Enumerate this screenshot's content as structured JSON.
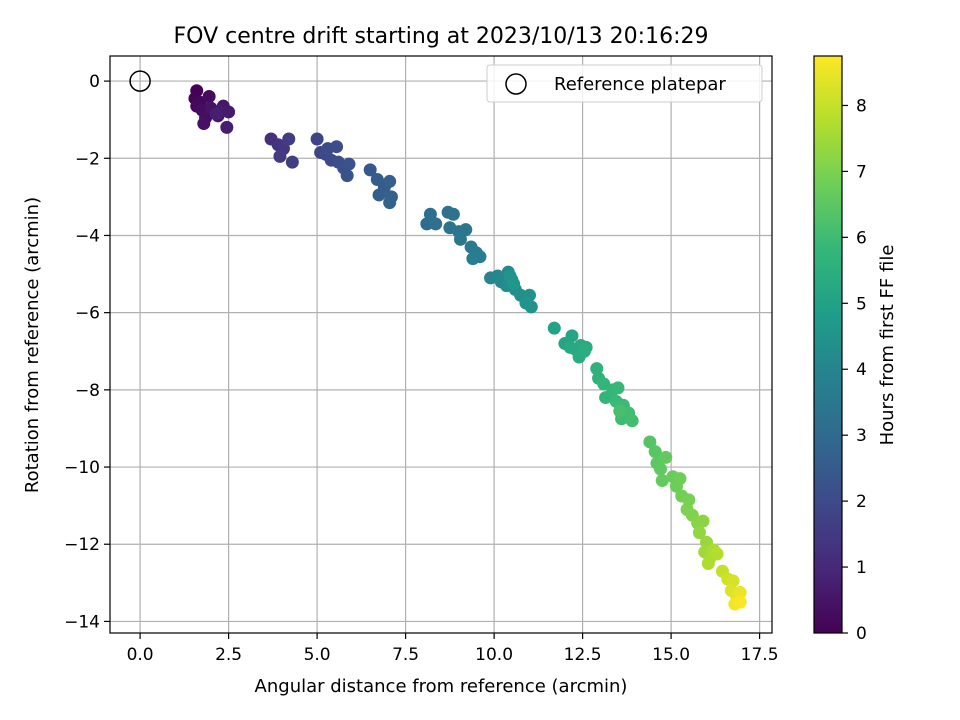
{
  "chart_data": {
    "type": "scatter",
    "title": "FOV centre drift starting at 2023/10/13 20:16:29",
    "xlabel": "Angular distance from reference (arcmin)",
    "ylabel": "Rotation from reference (arcmin)",
    "xlim": [
      -0.85,
      17.85
    ],
    "ylim": [
      -14.3,
      0.65
    ],
    "xticks": [
      0.0,
      2.5,
      5.0,
      7.5,
      10.0,
      12.5,
      15.0,
      17.5
    ],
    "xtick_labels": [
      "0.0",
      "2.5",
      "5.0",
      "7.5",
      "10.0",
      "12.5",
      "15.0",
      "17.5"
    ],
    "yticks": [
      0,
      -2,
      -4,
      -6,
      -8,
      -10,
      -12,
      -14
    ],
    "ytick_labels": [
      "0",
      "−2",
      "−4",
      "−6",
      "−8",
      "−10",
      "−12",
      "−14"
    ],
    "grid": true,
    "legend": {
      "position": "top-right",
      "entries": [
        {
          "label": "Reference platepar",
          "marker": "open-circle"
        }
      ]
    },
    "reference_point": {
      "x": 0.0,
      "y": 0.0
    },
    "colorbar": {
      "label": "Hours from first FF file",
      "range": [
        0,
        8.75
      ],
      "ticks": [
        0,
        1,
        2,
        3,
        4,
        5,
        6,
        7,
        8
      ],
      "tick_labels": [
        "0",
        "1",
        "2",
        "3",
        "4",
        "5",
        "6",
        "7",
        "8"
      ],
      "colormap": "viridis",
      "stops": [
        "#440154",
        "#482878",
        "#3e4989",
        "#31688e",
        "#26828e",
        "#1f9e89",
        "#35b779",
        "#6ece58",
        "#b5de2b",
        "#fde725"
      ]
    },
    "series": [
      {
        "name": "FOV centre drift",
        "points": [
          {
            "x": 1.6,
            "y": -0.25,
            "hours": 0.05
          },
          {
            "x": 1.55,
            "y": -0.45,
            "hours": 0.1
          },
          {
            "x": 1.7,
            "y": -0.55,
            "hours": 0.15
          },
          {
            "x": 1.6,
            "y": -0.65,
            "hours": 0.2
          },
          {
            "x": 1.95,
            "y": -0.4,
            "hours": 0.25
          },
          {
            "x": 1.75,
            "y": -0.75,
            "hours": 0.3
          },
          {
            "x": 1.85,
            "y": -0.95,
            "hours": 0.35
          },
          {
            "x": 1.8,
            "y": -1.1,
            "hours": 0.4
          },
          {
            "x": 2.0,
            "y": -0.7,
            "hours": 0.45
          },
          {
            "x": 2.2,
            "y": -0.9,
            "hours": 0.5
          },
          {
            "x": 2.35,
            "y": -0.65,
            "hours": 0.55
          },
          {
            "x": 2.3,
            "y": -0.75,
            "hours": 0.6
          },
          {
            "x": 2.5,
            "y": -0.8,
            "hours": 0.65
          },
          {
            "x": 2.45,
            "y": -1.2,
            "hours": 0.7
          },
          {
            "x": 2.15,
            "y": -0.85,
            "hours": 0.75
          },
          {
            "x": 3.7,
            "y": -1.5,
            "hours": 1.2
          },
          {
            "x": 3.9,
            "y": -1.65,
            "hours": 1.3
          },
          {
            "x": 4.05,
            "y": -1.75,
            "hours": 1.4
          },
          {
            "x": 3.95,
            "y": -1.95,
            "hours": 1.5
          },
          {
            "x": 4.2,
            "y": -1.5,
            "hours": 1.55
          },
          {
            "x": 4.3,
            "y": -2.1,
            "hours": 1.65
          },
          {
            "x": 5.0,
            "y": -1.5,
            "hours": 1.8
          },
          {
            "x": 5.1,
            "y": -1.85,
            "hours": 1.85
          },
          {
            "x": 5.25,
            "y": -1.9,
            "hours": 1.9
          },
          {
            "x": 5.4,
            "y": -2.05,
            "hours": 1.95
          },
          {
            "x": 5.3,
            "y": -1.75,
            "hours": 2.0
          },
          {
            "x": 5.55,
            "y": -1.7,
            "hours": 2.05
          },
          {
            "x": 5.6,
            "y": -2.1,
            "hours": 2.1
          },
          {
            "x": 5.75,
            "y": -2.25,
            "hours": 2.15
          },
          {
            "x": 5.85,
            "y": -2.45,
            "hours": 2.2
          },
          {
            "x": 5.9,
            "y": -2.15,
            "hours": 2.25
          },
          {
            "x": 6.5,
            "y": -2.3,
            "hours": 2.4
          },
          {
            "x": 6.7,
            "y": -2.55,
            "hours": 2.5
          },
          {
            "x": 6.9,
            "y": -2.75,
            "hours": 2.55
          },
          {
            "x": 6.75,
            "y": -2.95,
            "hours": 2.6
          },
          {
            "x": 7.05,
            "y": -2.6,
            "hours": 2.65
          },
          {
            "x": 7.1,
            "y": -3.0,
            "hours": 2.7
          },
          {
            "x": 7.05,
            "y": -3.15,
            "hours": 2.75
          },
          {
            "x": 8.1,
            "y": -3.7,
            "hours": 3.1
          },
          {
            "x": 8.2,
            "y": -3.45,
            "hours": 3.15
          },
          {
            "x": 8.35,
            "y": -3.7,
            "hours": 3.2
          },
          {
            "x": 8.7,
            "y": -3.4,
            "hours": 3.25
          },
          {
            "x": 8.85,
            "y": -3.45,
            "hours": 3.3
          },
          {
            "x": 8.75,
            "y": -3.8,
            "hours": 3.35
          },
          {
            "x": 9.0,
            "y": -3.9,
            "hours": 3.4
          },
          {
            "x": 9.2,
            "y": -3.85,
            "hours": 3.45
          },
          {
            "x": 9.05,
            "y": -4.1,
            "hours": 3.5
          },
          {
            "x": 9.35,
            "y": -4.3,
            "hours": 3.6
          },
          {
            "x": 9.5,
            "y": -4.45,
            "hours": 3.65
          },
          {
            "x": 9.6,
            "y": -4.55,
            "hours": 3.7
          },
          {
            "x": 9.4,
            "y": -4.6,
            "hours": 3.75
          },
          {
            "x": 9.9,
            "y": -5.1,
            "hours": 4.0
          },
          {
            "x": 10.1,
            "y": -5.05,
            "hours": 4.05
          },
          {
            "x": 10.2,
            "y": -5.2,
            "hours": 4.1
          },
          {
            "x": 10.4,
            "y": -4.95,
            "hours": 4.15
          },
          {
            "x": 10.5,
            "y": -5.15,
            "hours": 4.2
          },
          {
            "x": 10.35,
            "y": -5.3,
            "hours": 4.25
          },
          {
            "x": 10.6,
            "y": -5.4,
            "hours": 4.3
          },
          {
            "x": 10.75,
            "y": -5.55,
            "hours": 4.35
          },
          {
            "x": 11.0,
            "y": -5.55,
            "hours": 4.4
          },
          {
            "x": 11.05,
            "y": -5.85,
            "hours": 4.45
          },
          {
            "x": 10.9,
            "y": -5.75,
            "hours": 4.5
          },
          {
            "x": 10.45,
            "y": -5.05,
            "hours": 4.55
          },
          {
            "x": 10.55,
            "y": -5.25,
            "hours": 4.6
          },
          {
            "x": 11.7,
            "y": -6.4,
            "hours": 5.0
          },
          {
            "x": 12.0,
            "y": -6.8,
            "hours": 5.1
          },
          {
            "x": 12.2,
            "y": -6.6,
            "hours": 5.15
          },
          {
            "x": 12.3,
            "y": -6.95,
            "hours": 5.2
          },
          {
            "x": 12.15,
            "y": -6.9,
            "hours": 5.25
          },
          {
            "x": 12.45,
            "y": -6.85,
            "hours": 5.3
          },
          {
            "x": 12.6,
            "y": -6.9,
            "hours": 5.35
          },
          {
            "x": 12.4,
            "y": -7.15,
            "hours": 5.4
          },
          {
            "x": 12.55,
            "y": -7.0,
            "hours": 5.45
          },
          {
            "x": 12.9,
            "y": -7.45,
            "hours": 5.6
          },
          {
            "x": 12.95,
            "y": -7.7,
            "hours": 5.65
          },
          {
            "x": 13.1,
            "y": -7.85,
            "hours": 5.7
          },
          {
            "x": 13.15,
            "y": -8.2,
            "hours": 5.75
          },
          {
            "x": 13.35,
            "y": -8.0,
            "hours": 5.8
          },
          {
            "x": 13.5,
            "y": -7.95,
            "hours": 5.85
          },
          {
            "x": 13.45,
            "y": -8.3,
            "hours": 5.9
          },
          {
            "x": 13.65,
            "y": -8.4,
            "hours": 5.95
          },
          {
            "x": 13.6,
            "y": -8.75,
            "hours": 6.0
          },
          {
            "x": 13.8,
            "y": -8.6,
            "hours": 6.05
          },
          {
            "x": 13.9,
            "y": -8.8,
            "hours": 6.1
          },
          {
            "x": 13.55,
            "y": -8.55,
            "hours": 6.15
          },
          {
            "x": 14.4,
            "y": -9.35,
            "hours": 6.4
          },
          {
            "x": 14.55,
            "y": -9.6,
            "hours": 6.45
          },
          {
            "x": 14.6,
            "y": -9.9,
            "hours": 6.5
          },
          {
            "x": 14.7,
            "y": -10.05,
            "hours": 6.55
          },
          {
            "x": 14.85,
            "y": -9.75,
            "hours": 6.6
          },
          {
            "x": 14.75,
            "y": -10.35,
            "hours": 6.65
          },
          {
            "x": 15.05,
            "y": -10.25,
            "hours": 6.7
          },
          {
            "x": 15.15,
            "y": -10.5,
            "hours": 6.75
          },
          {
            "x": 15.25,
            "y": -10.3,
            "hours": 6.8
          },
          {
            "x": 15.3,
            "y": -10.75,
            "hours": 6.85
          },
          {
            "x": 15.5,
            "y": -10.85,
            "hours": 6.9
          },
          {
            "x": 15.45,
            "y": -11.1,
            "hours": 7.0
          },
          {
            "x": 15.6,
            "y": -11.25,
            "hours": 7.05
          },
          {
            "x": 15.75,
            "y": -11.45,
            "hours": 7.15
          },
          {
            "x": 15.9,
            "y": -11.4,
            "hours": 7.2
          },
          {
            "x": 15.8,
            "y": -11.7,
            "hours": 7.3
          },
          {
            "x": 16.0,
            "y": -11.95,
            "hours": 7.4
          },
          {
            "x": 15.95,
            "y": -12.2,
            "hours": 7.5
          },
          {
            "x": 16.1,
            "y": -12.35,
            "hours": 7.6
          },
          {
            "x": 16.2,
            "y": -12.15,
            "hours": 7.65
          },
          {
            "x": 16.05,
            "y": -12.5,
            "hours": 7.7
          },
          {
            "x": 16.3,
            "y": -12.25,
            "hours": 7.75
          },
          {
            "x": 16.45,
            "y": -12.7,
            "hours": 8.0
          },
          {
            "x": 16.6,
            "y": -12.9,
            "hours": 8.1
          },
          {
            "x": 16.75,
            "y": -12.95,
            "hours": 8.2
          },
          {
            "x": 16.7,
            "y": -13.2,
            "hours": 8.3
          },
          {
            "x": 16.85,
            "y": -13.35,
            "hours": 8.4
          },
          {
            "x": 16.95,
            "y": -13.25,
            "hours": 8.5
          },
          {
            "x": 16.8,
            "y": -13.55,
            "hours": 8.6
          },
          {
            "x": 16.95,
            "y": -13.5,
            "hours": 8.7
          }
        ]
      }
    ]
  }
}
